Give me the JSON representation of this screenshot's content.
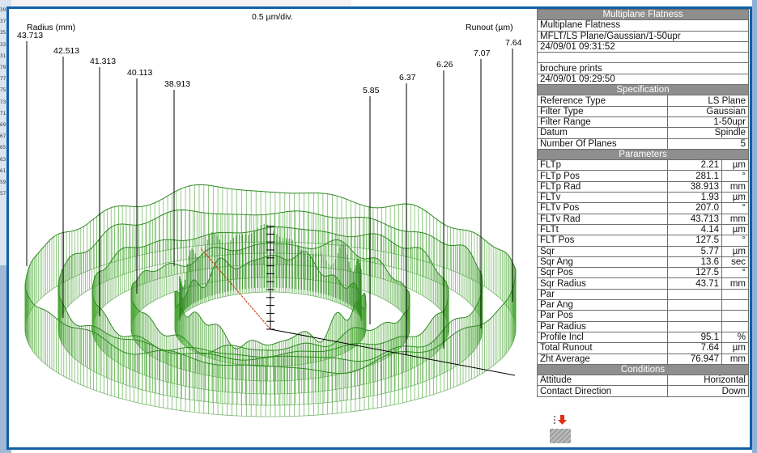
{
  "chart_data": {
    "type": "3d-polar-profile",
    "scale_label": "0.5 µm/div.",
    "left_axis_label": "Radius (mm)",
    "right_axis_label": "Runout (µm)",
    "radius_labels": [
      "43.713",
      "42.513",
      "41.313",
      "40.113",
      "38.913"
    ],
    "runout_labels": [
      "5.85",
      "6.37",
      "6.26",
      "7.07",
      "7.64"
    ],
    "colors": {
      "trace": "#4ea83a",
      "trace_dark": "#2f8a22",
      "axis": "#000000",
      "marker": "#cc3300"
    }
  },
  "panel": {
    "header": "Multiplane Flatness",
    "info": [
      "Multiplane Flatness",
      "MFLT/LS Plane/Gaussian/1-50upr",
      "24/09/01 09:31:52",
      "",
      "brochure prints",
      "24/09/01 09:29:50"
    ],
    "specification_header": "Specification",
    "specification": [
      {
        "label": "Reference Type",
        "value": "LS Plane"
      },
      {
        "label": "Filter Type",
        "value": "Gaussian"
      },
      {
        "label": "Filter Range",
        "value": "1-50upr"
      },
      {
        "label": "Datum",
        "value": "Spindle"
      },
      {
        "label": "Number Of Planes",
        "value": "5"
      }
    ],
    "parameters_header": "Parameters",
    "parameters": [
      {
        "label": "FLTp",
        "value": "2.21",
        "unit": "µm"
      },
      {
        "label": "FLTp Pos",
        "value": "281.1",
        "unit": "°"
      },
      {
        "label": "FLTp Rad",
        "value": "38.913",
        "unit": "mm"
      },
      {
        "label": "FLTv",
        "value": "1.93",
        "unit": "µm"
      },
      {
        "label": "FLTv Pos",
        "value": "207.0",
        "unit": "°"
      },
      {
        "label": "FLTv Rad",
        "value": "43.713",
        "unit": "mm"
      },
      {
        "label": "FLTt",
        "value": "4.14",
        "unit": "µm"
      },
      {
        "label": "FLT Pos",
        "value": "127.5",
        "unit": "°"
      },
      {
        "label": "Sqr",
        "value": "5.77",
        "unit": "µm"
      },
      {
        "label": "Sqr Ang",
        "value": "13.6",
        "unit": "sec"
      },
      {
        "label": "Sqr Pos",
        "value": "127.5",
        "unit": "°"
      },
      {
        "label": "Sqr Radius",
        "value": "43.71",
        "unit": "mm"
      },
      {
        "label": "Par",
        "value": "",
        "unit": ""
      },
      {
        "label": "Par Ang",
        "value": "",
        "unit": ""
      },
      {
        "label": "Par Pos",
        "value": "",
        "unit": ""
      },
      {
        "label": "Par Radius",
        "value": "",
        "unit": ""
      },
      {
        "label": "Profile Incl",
        "value": "95.1",
        "unit": "%"
      },
      {
        "label": "Total Runout",
        "value": "7.64",
        "unit": "µm"
      },
      {
        "label": "Zht Average",
        "value": "76.947",
        "unit": "mm"
      }
    ],
    "conditions_header": "Conditions",
    "conditions": [
      {
        "label": "Attitude",
        "value": "Horizontal"
      },
      {
        "label": "Contact Direction",
        "value": "Down"
      }
    ]
  },
  "background": {
    "line_numbers": [
      "39",
      "37",
      "35",
      "33",
      "31",
      "79",
      "77",
      "75",
      "73",
      "71",
      "69",
      "67",
      "65",
      "63",
      "61",
      "59",
      "57"
    ]
  },
  "icons": {
    "probe": "probe-contact-down-icon"
  }
}
